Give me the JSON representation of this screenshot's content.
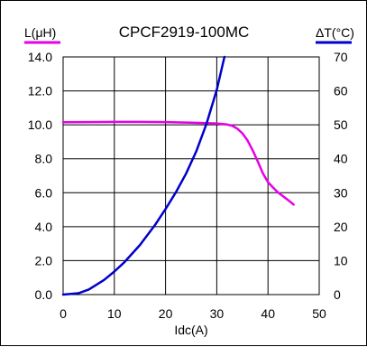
{
  "chart_data": {
    "type": "line",
    "title": "CPCF2919-100MC",
    "xlabel": "Idc(A)",
    "x_ticks": [
      0,
      10,
      20,
      30,
      40,
      50
    ],
    "xlim": [
      0,
      50
    ],
    "y_left": {
      "label": "L(μH)",
      "ticks": [
        "0.0",
        "2.0",
        "4.0",
        "6.0",
        "8.0",
        "10.0",
        "12.0",
        "14.0"
      ],
      "lim": [
        0,
        14
      ],
      "legend_color": "#e600e6"
    },
    "y_right": {
      "label": "ΔT(°C)",
      "ticks": [
        "0",
        "10",
        "20",
        "30",
        "40",
        "50",
        "60",
        "70"
      ],
      "lim": [
        0,
        70
      ],
      "legend_color": "#0000cc"
    },
    "grid": true,
    "series": [
      {
        "axis": "left",
        "color": "#e600e6",
        "x": [
          0,
          5,
          10,
          15,
          20,
          25,
          28,
          30,
          32,
          33,
          34,
          35,
          36,
          37,
          38,
          39,
          40,
          41,
          42,
          43,
          44,
          45
        ],
        "y": [
          10.15,
          10.16,
          10.17,
          10.17,
          10.16,
          10.13,
          10.1,
          10.08,
          10.02,
          9.95,
          9.78,
          9.5,
          9.08,
          8.5,
          7.85,
          7.15,
          6.62,
          6.3,
          6.0,
          5.78,
          5.55,
          5.3
        ]
      },
      {
        "axis": "right",
        "color": "#0000cc",
        "x": [
          0,
          3,
          5,
          8,
          10,
          12,
          15,
          18,
          20,
          22,
          24,
          26,
          28,
          30,
          31.5
        ],
        "y": [
          0,
          0.4,
          1.5,
          4.3,
          6.8,
          9.6,
          14.6,
          20.6,
          25.2,
          30.1,
          35.6,
          42.2,
          50.3,
          60.3,
          70
        ]
      }
    ]
  }
}
